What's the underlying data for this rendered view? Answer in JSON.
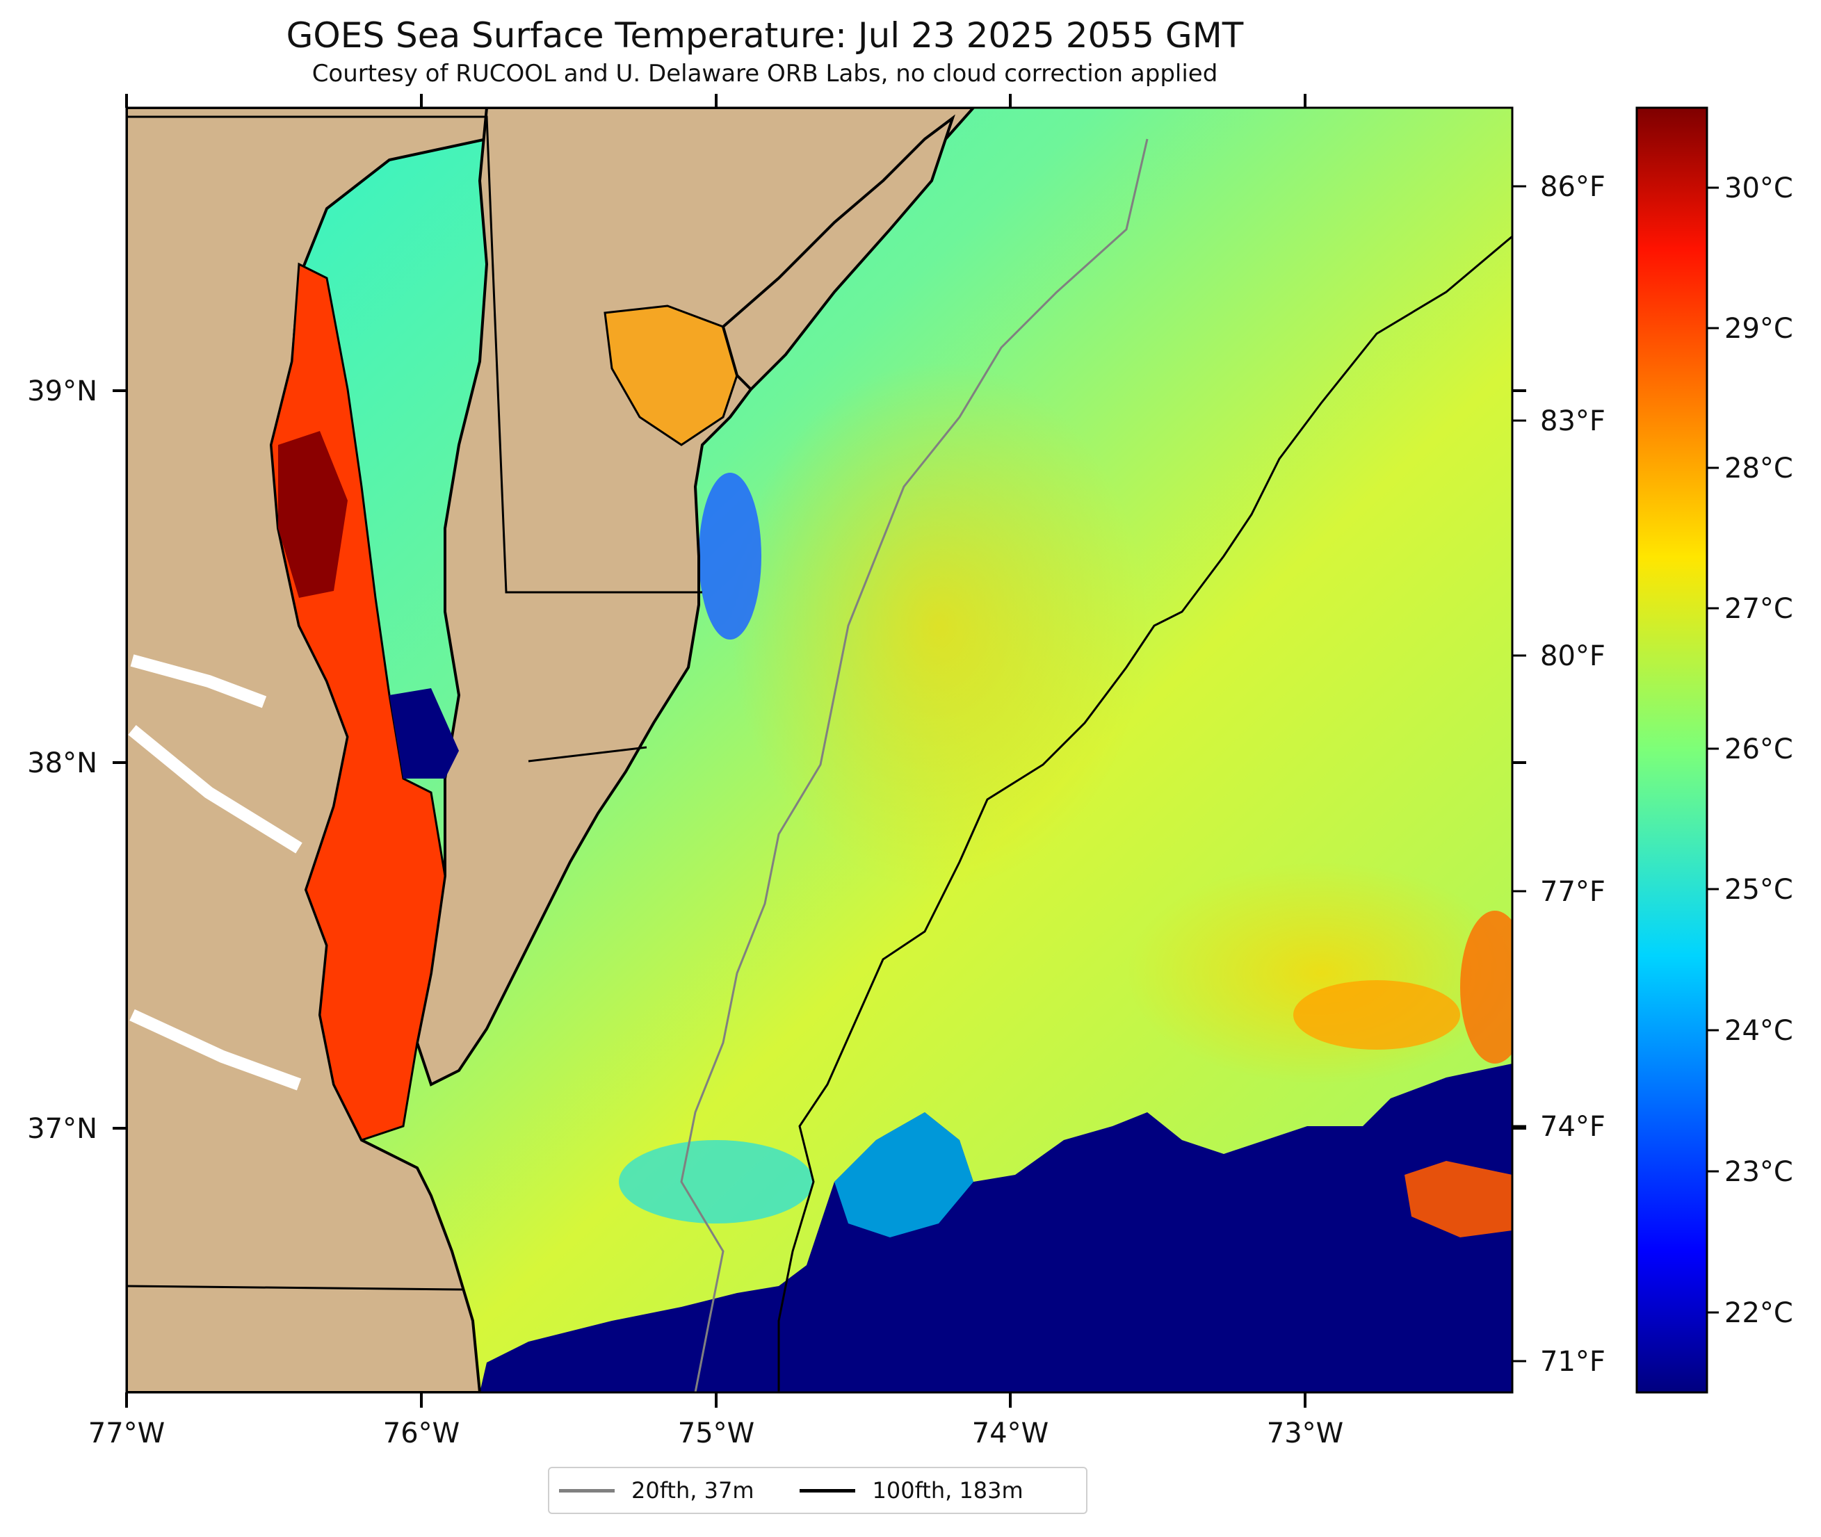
{
  "header": {
    "title": "GOES Sea Surface Temperature: Jul 23 2025 2055 GMT",
    "subtitle": "Courtesy of RUCOOL and U. Delaware ORB Labs, no cloud correction applied"
  },
  "map": {
    "lon_ticks": [
      "77°W",
      "76°W",
      "75°W",
      "74°W",
      "73°W"
    ],
    "lat_ticks": [
      "39°N",
      "38°N",
      "37°N"
    ],
    "fahrenheit_ticks": [
      "86°F",
      "83°F",
      "80°F",
      "77°F",
      "74°F",
      "71°F"
    ],
    "colors": {
      "land": "#D2B48C",
      "cloud_mask": "#00007F",
      "coast": "#000000"
    }
  },
  "colorbar": {
    "labels": [
      "30°C",
      "29°C",
      "28°C",
      "27°C",
      "26°C",
      "25°C",
      "24°C",
      "23°C",
      "22°C"
    ],
    "colormap": "jet"
  },
  "legend": {
    "items": [
      {
        "label": "20fth, 37m",
        "color": "#808080"
      },
      {
        "label": "100fth, 183m",
        "color": "#000000"
      }
    ]
  }
}
